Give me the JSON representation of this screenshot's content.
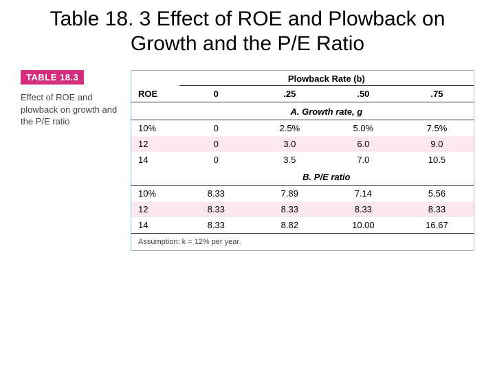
{
  "slide_title": "Table 18. 3 Effect of ROE and Plowback on Growth and the P/E Ratio",
  "badge": "TABLE 18.3",
  "caption": "Effect of ROE and plowback on growth and the P/E ratio",
  "header": {
    "roe_label": "ROE",
    "plowback_label": "Plowback Rate (b)",
    "cols": [
      "0",
      ".25",
      ".50",
      ".75"
    ]
  },
  "sections": [
    {
      "label": "A. Growth rate, g",
      "rows": [
        {
          "roe": "10%",
          "vals": [
            "0",
            "2.5%",
            "5.0%",
            "7.5%"
          ],
          "stripe": false
        },
        {
          "roe": "12",
          "vals": [
            "0",
            "3.0",
            "6.0",
            "9.0"
          ],
          "stripe": true
        },
        {
          "roe": "14",
          "vals": [
            "0",
            "3.5",
            "7.0",
            "10.5"
          ],
          "stripe": false
        }
      ]
    },
    {
      "label": "B. P/E ratio",
      "rows": [
        {
          "roe": "10%",
          "vals": [
            "8.33",
            "7.89",
            "7.14",
            "5.56"
          ],
          "stripe": false
        },
        {
          "roe": "12",
          "vals": [
            "8.33",
            "8.33",
            "8.33",
            "8.33"
          ],
          "stripe": true
        },
        {
          "roe": "14",
          "vals": [
            "8.33",
            "8.82",
            "10.00",
            "16.67"
          ],
          "stripe": false
        }
      ]
    }
  ],
  "assumption": "Assumption: k = 12% per year.",
  "colors": {
    "badge_bg": "#d52d7e",
    "stripe_bg": "#fbe9ef",
    "border": "#9bb6d2"
  }
}
